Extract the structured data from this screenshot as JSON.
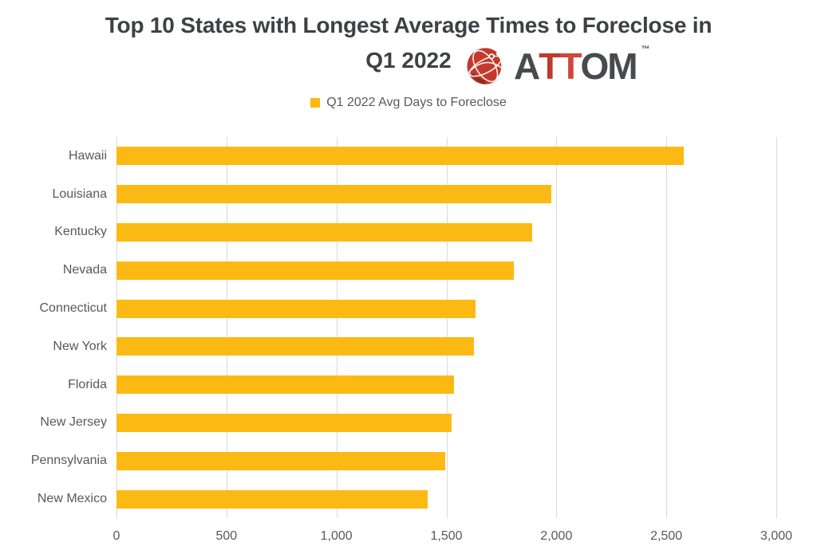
{
  "title": {
    "line1": "Top 10 States with Longest Average Times to Foreclose in",
    "line2": "Q1 2022"
  },
  "logo": {
    "brand": "ATTOM",
    "letters": [
      {
        "ch": "A",
        "color": "#474A4E"
      },
      {
        "ch": "T",
        "color": "#BE3A2E"
      },
      {
        "ch": "T",
        "color": "#D2453A"
      },
      {
        "ch": "O",
        "color": "#474A4E"
      },
      {
        "ch": "M",
        "color": "#474A4E"
      }
    ],
    "trademark": "™",
    "globe_red": "#C23A2C",
    "globe_dark_red": "#8E2B22"
  },
  "legend": {
    "swatch_color": "#FDB913",
    "label": "Q1 2022 Avg Days to Foreclose"
  },
  "chart_data": {
    "type": "bar",
    "orientation": "horizontal",
    "title": "Top 10 States with Longest Average Times to Foreclose in Q1 2022",
    "series_name": "Q1 2022 Avg Days to Foreclose",
    "categories": [
      "Hawaii",
      "Louisiana",
      "Kentucky",
      "Nevada",
      "Connecticut",
      "New York",
      "Florida",
      "New Jersey",
      "Pennsylvania",
      "New Mexico"
    ],
    "values": [
      2578,
      1976,
      1891,
      1808,
      1632,
      1626,
      1535,
      1524,
      1493,
      1413
    ],
    "xlabel": "",
    "ylabel": "",
    "xlim": [
      0,
      3000
    ],
    "x_ticks": [
      "0",
      "500",
      "1,000",
      "1,500",
      "2,000",
      "2,500",
      "3,000"
    ],
    "grid": true,
    "legend_position": "top",
    "bar_color": "#FDB913",
    "gridline_color": "#D9D9D9",
    "axis_text_color": "#595959",
    "title_color": "#3E4045"
  }
}
